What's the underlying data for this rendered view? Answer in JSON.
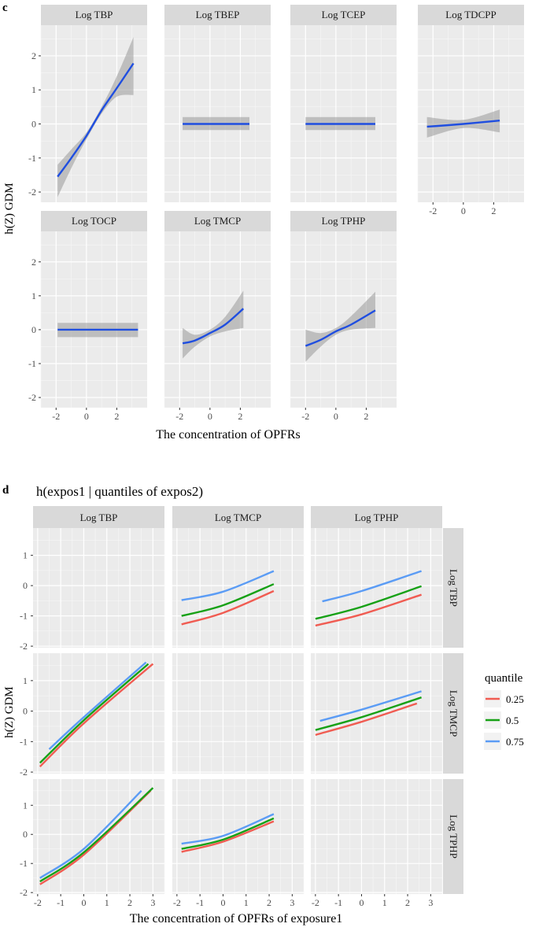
{
  "colors": {
    "panel_bg": "#ebebeb",
    "strip_bg": "#d9d9d9",
    "grid_major": "#ffffff",
    "grid_minor": "#f7f7f7",
    "text": "#000000",
    "axis_text": "#4d4d4d",
    "fit_line": "#1f4ee0",
    "ribbon": "#999999",
    "q25": "#f05c52",
    "q50": "#17a116",
    "q75": "#5b9cf5"
  },
  "chart_data": [
    {
      "id": "c",
      "panel_letter": "c",
      "type": "line",
      "title": "",
      "ylabel": "h(Z) GDM",
      "xlabel": "The concentration of OPFRs",
      "xlim": [
        -3,
        4
      ],
      "ylim": [
        -2.3,
        2.9
      ],
      "x_ticks": [
        -2,
        0,
        2
      ],
      "x_tick_labels": [
        "-2",
        "0",
        "2"
      ],
      "y_ticks": [
        -2,
        -1,
        0,
        1,
        2
      ],
      "y_tick_labels": [
        "-2",
        "-1",
        "0",
        "1",
        "2"
      ],
      "facets": [
        {
          "label": "Log TBP",
          "row": 0,
          "col": 0,
          "x": [
            -1.9,
            -1.0,
            0,
            1.0,
            2.0,
            3.1
          ],
          "y": [
            -1.55,
            -1.0,
            -0.35,
            0.4,
            1.05,
            1.78
          ],
          "lower": [
            -2.15,
            -1.3,
            -0.45,
            0.3,
            0.8,
            0.85
          ],
          "upper": [
            -1.2,
            -0.75,
            -0.25,
            0.5,
            1.4,
            2.55
          ]
        },
        {
          "label": "Log TBEP",
          "row": 0,
          "col": 1,
          "x": [
            -1.8,
            2.6
          ],
          "y": [
            0,
            0
          ],
          "lower": [
            -0.18,
            -0.18
          ],
          "upper": [
            0.2,
            0.2
          ]
        },
        {
          "label": "Log TCEP",
          "row": 0,
          "col": 2,
          "x": [
            -2.0,
            2.6
          ],
          "y": [
            0,
            0
          ],
          "lower": [
            -0.18,
            -0.18
          ],
          "upper": [
            0.2,
            0.2
          ]
        },
        {
          "label": "Log TDCPP",
          "row": 0,
          "col": 3,
          "x": [
            -2.4,
            0,
            2.4
          ],
          "y": [
            -0.08,
            0,
            0.1
          ],
          "lower": [
            -0.4,
            -0.12,
            -0.25
          ],
          "upper": [
            0.2,
            0.12,
            0.42
          ],
          "x_axis": true
        },
        {
          "label": "Log TOCP",
          "row": 1,
          "col": 0,
          "x": [
            -1.9,
            3.4
          ],
          "y": [
            0,
            0
          ],
          "lower": [
            -0.22,
            -0.22
          ],
          "upper": [
            0.2,
            0.2
          ],
          "x_axis": true
        },
        {
          "label": "Log TMCP",
          "row": 1,
          "col": 1,
          "x": [
            -1.8,
            -1.0,
            0,
            1.0,
            2.2
          ],
          "y": [
            -0.4,
            -0.32,
            -0.1,
            0.15,
            0.62
          ],
          "lower": [
            -0.85,
            -0.5,
            -0.2,
            -0.05,
            0.05
          ],
          "upper": [
            0.05,
            -0.15,
            0.0,
            0.38,
            1.15
          ],
          "x_axis": true
        },
        {
          "label": "Log TPHP",
          "row": 1,
          "col": 2,
          "x": [
            -2.0,
            -1.0,
            0,
            1.0,
            2.6
          ],
          "y": [
            -0.48,
            -0.3,
            -0.05,
            0.15,
            0.57
          ],
          "lower": [
            -0.95,
            -0.5,
            -0.15,
            0.0,
            0.05
          ],
          "upper": [
            0.0,
            -0.1,
            0.05,
            0.4,
            1.12
          ],
          "x_axis": true
        }
      ]
    },
    {
      "id": "d",
      "panel_letter": "d",
      "type": "line",
      "title": "h(expos1 | quantiles of expos2)",
      "ylabel": "h(Z) GDM",
      "xlabel": "The concentration of OPFRs of exposure1",
      "xlim": [
        -2.2,
        3.5
      ],
      "ylim": [
        -2.05,
        1.9
      ],
      "x_ticks": [
        -2,
        -1,
        0,
        1,
        2,
        3
      ],
      "x_tick_labels": [
        "-2",
        "-1",
        "0",
        "1",
        "2",
        "3"
      ],
      "y_ticks": [
        -2,
        -1,
        0,
        1
      ],
      "y_tick_labels": [
        "-2",
        "-1",
        "0",
        "1"
      ],
      "col_strips": [
        "Log TBP",
        "Log TMCP",
        "Log TPHP"
      ],
      "row_strips": [
        "Log TBP",
        "Log TMCP",
        "Log TPHP"
      ],
      "legend": {
        "title": "quantile",
        "entries": [
          {
            "label": "0.25",
            "key": "q25"
          },
          {
            "label": "0.5",
            "key": "q50"
          },
          {
            "label": "0.75",
            "key": "q75"
          }
        ]
      },
      "cells": [
        {
          "row": 0,
          "col": 1,
          "series": [
            {
              "name": "0.25",
              "x": [
                -1.8,
                0,
                2.2
              ],
              "y": [
                -1.28,
                -0.9,
                -0.18
              ]
            },
            {
              "name": "0.5",
              "x": [
                -1.8,
                0,
                2.2
              ],
              "y": [
                -1.0,
                -0.65,
                0.05
              ]
            },
            {
              "name": "0.75",
              "x": [
                -1.8,
                0,
                2.2
              ],
              "y": [
                -0.48,
                -0.2,
                0.48
              ]
            }
          ]
        },
        {
          "row": 0,
          "col": 2,
          "series": [
            {
              "name": "0.25",
              "x": [
                -2.0,
                0,
                2.6
              ],
              "y": [
                -1.32,
                -0.95,
                -0.3
              ]
            },
            {
              "name": "0.5",
              "x": [
                -2.0,
                0,
                2.6
              ],
              "y": [
                -1.1,
                -0.7,
                -0.02
              ]
            },
            {
              "name": "0.75",
              "x": [
                -1.7,
                0,
                2.6
              ],
              "y": [
                -0.52,
                -0.18,
                0.48
              ]
            }
          ]
        },
        {
          "row": 1,
          "col": 0,
          "series": [
            {
              "name": "0.25",
              "x": [
                -1.9,
                0,
                3.0
              ],
              "y": [
                -1.82,
                -0.4,
                1.55
              ]
            },
            {
              "name": "0.5",
              "x": [
                -1.9,
                0,
                2.8
              ],
              "y": [
                -1.7,
                -0.3,
                1.55
              ]
            },
            {
              "name": "0.75",
              "x": [
                -1.5,
                0,
                2.7
              ],
              "y": [
                -1.25,
                -0.2,
                1.6
              ]
            }
          ]
        },
        {
          "row": 1,
          "col": 2,
          "series": [
            {
              "name": "0.25",
              "x": [
                -2.0,
                0,
                2.4
              ],
              "y": [
                -0.78,
                -0.35,
                0.25
              ]
            },
            {
              "name": "0.5",
              "x": [
                -2.0,
                0,
                2.6
              ],
              "y": [
                -0.62,
                -0.2,
                0.45
              ]
            },
            {
              "name": "0.75",
              "x": [
                -1.8,
                0,
                2.6
              ],
              "y": [
                -0.32,
                0.05,
                0.65
              ]
            }
          ]
        },
        {
          "row": 2,
          "col": 0,
          "series": [
            {
              "name": "0.25",
              "x": [
                -1.9,
                0,
                2.9
              ],
              "y": [
                -1.72,
                -0.7,
                1.5
              ]
            },
            {
              "name": "0.5",
              "x": [
                -1.9,
                0,
                3.0
              ],
              "y": [
                -1.62,
                -0.62,
                1.6
              ]
            },
            {
              "name": "0.75",
              "x": [
                -1.9,
                0,
                2.5
              ],
              "y": [
                -1.5,
                -0.5,
                1.5
              ]
            }
          ]
        },
        {
          "row": 2,
          "col": 1,
          "series": [
            {
              "name": "0.25",
              "x": [
                -1.8,
                0,
                2.2
              ],
              "y": [
                -0.6,
                -0.25,
                0.45
              ]
            },
            {
              "name": "0.5",
              "x": [
                -1.8,
                0,
                2.2
              ],
              "y": [
                -0.5,
                -0.18,
                0.55
              ]
            },
            {
              "name": "0.75",
              "x": [
                -1.8,
                0,
                2.2
              ],
              "y": [
                -0.32,
                -0.05,
                0.7
              ]
            }
          ]
        }
      ]
    }
  ]
}
